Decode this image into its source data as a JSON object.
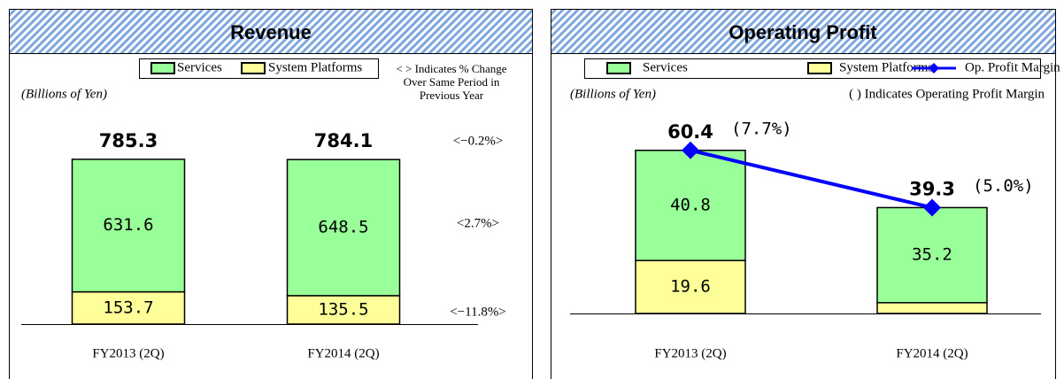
{
  "chart_data": [
    {
      "type": "bar",
      "title": "Revenue",
      "unit_note": "(Billions of Yen)",
      "note": "< > Indicates % Change Over Same Period in Previous Year",
      "categories": [
        "FY2013 (2Q)",
        "FY2014 (2Q)"
      ],
      "series": [
        {
          "name": "Services",
          "color": "#99ff99",
          "values": [
            631.6,
            648.5
          ]
        },
        {
          "name": "System Platforms",
          "color": "#ffff99",
          "values": [
            153.7,
            135.5
          ]
        }
      ],
      "totals": [
        785.3,
        784.1
      ],
      "change_labels": [
        "<−0.2%>",
        "<2.7%>",
        "<−11.8%>"
      ],
      "ylim": [
        0,
        1000
      ]
    },
    {
      "type": "bar",
      "title": "Operating Profit",
      "unit_note": "(Billions of Yen)",
      "note": "( ) Indicates Operating Profit Margin",
      "categories": [
        "FY2013 (2Q)",
        "FY2014 (2Q)"
      ],
      "series": [
        {
          "name": "Services",
          "color": "#99ff99",
          "values": [
            40.8,
            35.2
          ]
        },
        {
          "name": "System Platforms",
          "color": "#ffff99",
          "values": [
            19.6,
            4.0
          ]
        },
        {
          "name": "Op. Profit Margin",
          "color": "#0000ff",
          "type": "line",
          "values": [
            7.7,
            5.0
          ],
          "value_labels": [
            "(7.7%)",
            "(5.0%)"
          ]
        }
      ],
      "totals": [
        60.4,
        39.3
      ],
      "ylim": [
        0,
        80
      ]
    }
  ]
}
